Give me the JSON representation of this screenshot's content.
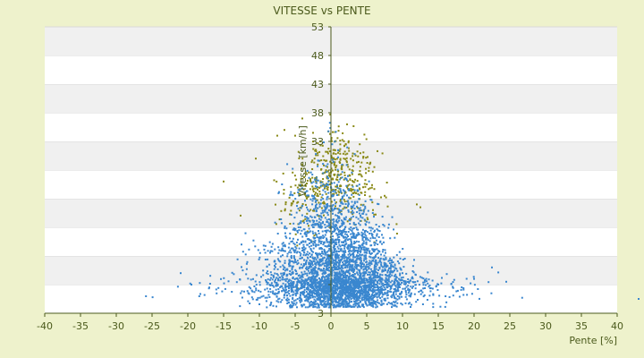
{
  "chart_data": {
    "type": "scatter",
    "title": "VITESSE vs PENTE",
    "xlabel": "Pente [%]",
    "ylabel": "Vitesse [km/h]",
    "xlim": [
      -40,
      40
    ],
    "ylim": [
      3,
      53
    ],
    "xticks": [
      -40,
      -35,
      -30,
      -25,
      -20,
      -15,
      -10,
      -5,
      0,
      5,
      10,
      15,
      20,
      25,
      30,
      35,
      40
    ],
    "yticks": [
      3,
      8,
      13,
      18,
      23,
      28,
      33,
      38,
      43,
      48,
      53
    ],
    "ytick_labels": [
      "3",
      "",
      "",
      "",
      "",
      "",
      "33",
      "38",
      "43",
      "48",
      "53"
    ],
    "grid": "horizontal alternating bands",
    "legend": "none",
    "colors": {
      "background": "#eef2cc",
      "plot_band_light": "#ffffff",
      "plot_band_dark": "#f0f0f0",
      "series_a": "#3a87cf",
      "series_b": "#8a8a18",
      "text": "#4b5a1c",
      "axis": "#4b5a1c"
    },
    "series": [
      {
        "color": "#8a8a18",
        "description_points": [
          {
            "x": -15.0,
            "y": 26.0
          },
          {
            "x": -10.5,
            "y": 30.0
          },
          {
            "x": -7.5,
            "y": 34.0
          },
          {
            "x": -6.5,
            "y": 35.0
          },
          {
            "x": -5.0,
            "y": 34.0
          },
          {
            "x": -4.0,
            "y": 37.0
          },
          {
            "x": -2.5,
            "y": 34.5
          },
          {
            "x": -1.5,
            "y": 33.0
          },
          {
            "x": 0.5,
            "y": 31.5
          },
          {
            "x": 1.0,
            "y": 31.0
          },
          {
            "x": 4.5,
            "y": 25.0
          },
          {
            "x": 7.5,
            "y": 23.5
          },
          {
            "x": 12.0,
            "y": 22.0
          },
          {
            "x": 12.5,
            "y": 21.5
          }
        ]
      },
      {
        "color": "#3a87cf",
        "description_points": [
          {
            "x": -21.0,
            "y": 10.0
          },
          {
            "x": -19.5,
            "y": 8.0
          },
          {
            "x": -17.0,
            "y": 7.5
          },
          {
            "x": -12.5,
            "y": 15.0
          },
          {
            "x": -9.0,
            "y": 10.0
          },
          {
            "x": -6.5,
            "y": 7.0
          },
          {
            "x": -2.0,
            "y": 22.0
          },
          {
            "x": 0.0,
            "y": 25.0
          },
          {
            "x": 2.0,
            "y": 18.0
          },
          {
            "x": 5.0,
            "y": 12.0
          },
          {
            "x": 10.0,
            "y": 10.0
          },
          {
            "x": 15.0,
            "y": 8.0
          },
          {
            "x": 20.0,
            "y": 9.0
          },
          {
            "x": 22.5,
            "y": 11.0
          },
          {
            "x": 24.5,
            "y": 8.5
          },
          {
            "x": 43.0,
            "y": 5.5
          }
        ]
      }
    ]
  }
}
